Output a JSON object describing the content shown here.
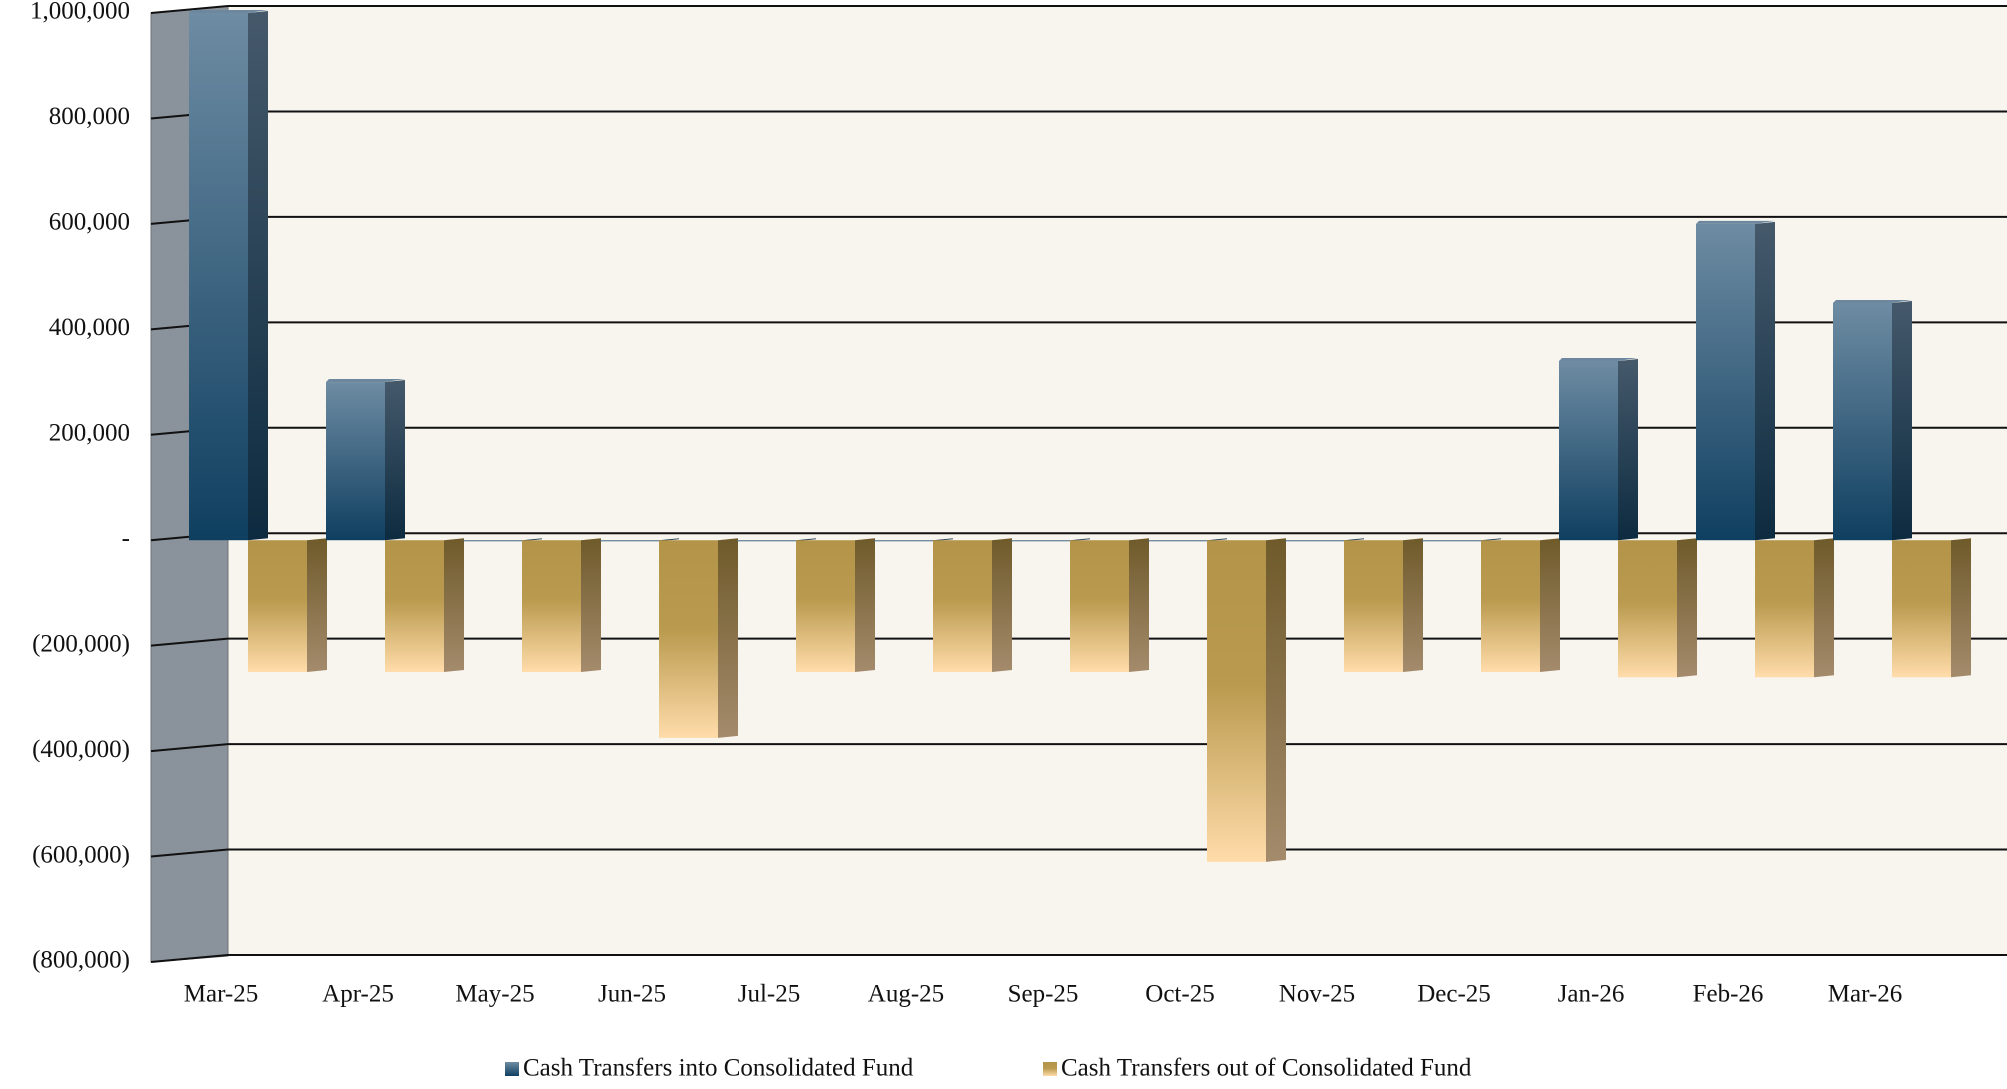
{
  "chart_data": {
    "type": "bar",
    "categories": [
      "Mar-25",
      "Apr-25",
      "May-25",
      "Jun-25",
      "Jul-25",
      "Aug-25",
      "Sep-25",
      "Oct-25",
      "Nov-25",
      "Dec-25",
      "Jan-26",
      "Feb-26",
      "Mar-26"
    ],
    "series": [
      {
        "name": "Cash Transfers into Consolidated Fund",
        "color": "#2a5575",
        "values": [
          1000000,
          300000,
          0,
          0,
          0,
          0,
          0,
          0,
          0,
          0,
          340000,
          600000,
          450000
        ]
      },
      {
        "name": "Cash Transfers out of Consolidated Fund",
        "color": "#b39448",
        "values": [
          -250000,
          -250000,
          -250000,
          -375000,
          -250000,
          -250000,
          -250000,
          -610000,
          -250000,
          -250000,
          -260000,
          -260000,
          -260000
        ]
      }
    ],
    "ylim": [
      -800000,
      1000000
    ],
    "yticks": [
      {
        "value": -800000,
        "label": "(800,000)"
      },
      {
        "value": -600000,
        "label": "(600,000)"
      },
      {
        "value": -400000,
        "label": "(400,000)"
      },
      {
        "value": -200000,
        "label": "(200,000)"
      },
      {
        "value": 0,
        "label": "-"
      },
      {
        "value": 200000,
        "label": "200,000"
      },
      {
        "value": 400000,
        "label": "400,000"
      },
      {
        "value": 600000,
        "label": "600,000"
      },
      {
        "value": 800000,
        "label": "800,000"
      },
      {
        "value": 1000000,
        "label": "1,000,000"
      }
    ],
    "grid": true
  }
}
